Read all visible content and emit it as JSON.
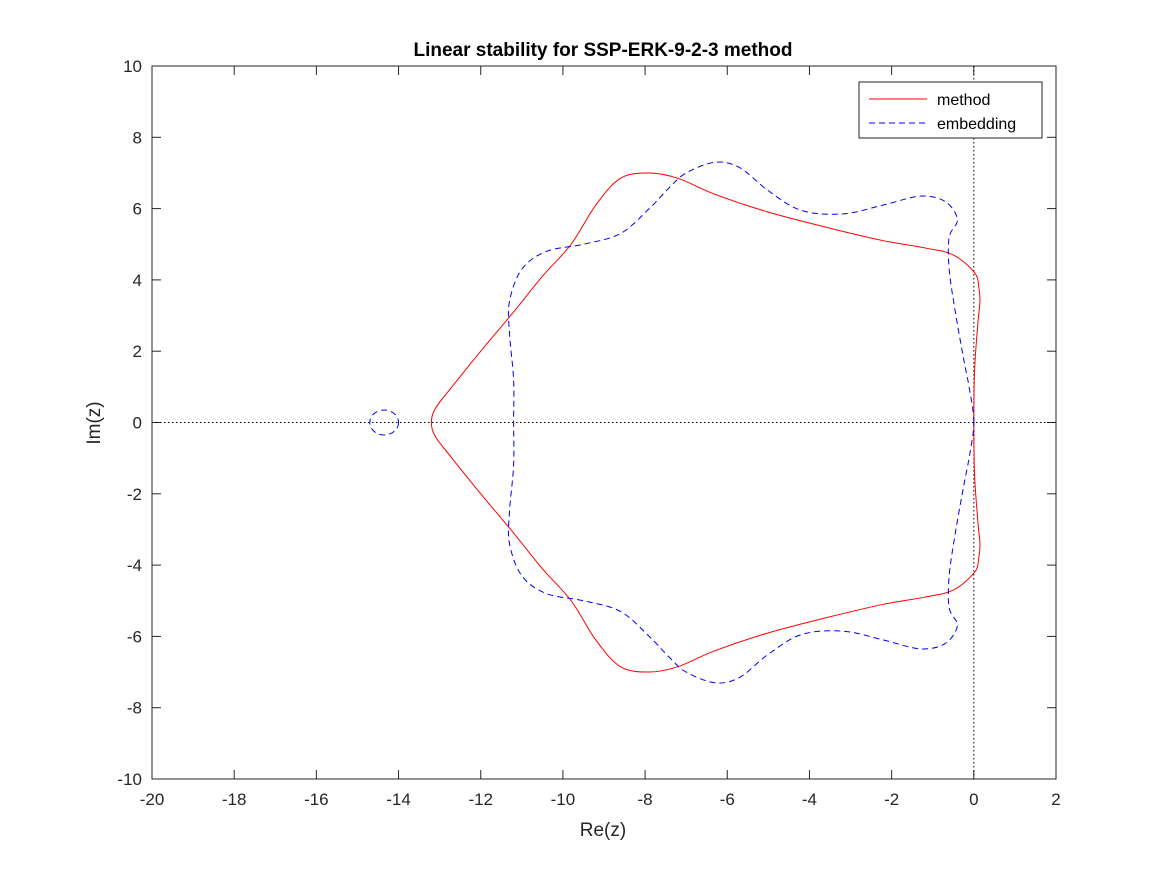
{
  "chart_data": {
    "type": "line",
    "title": "Linear stability for SSP-ERK-9-2-3 method",
    "xlabel": "Re(z)",
    "ylabel": "Im(z)",
    "xlim": [
      -20,
      2
    ],
    "ylim": [
      -10,
      10
    ],
    "xticks": [
      -20,
      -18,
      -16,
      -14,
      -12,
      -10,
      -8,
      -6,
      -4,
      -2,
      0,
      2
    ],
    "yticks": [
      -10,
      -8,
      -6,
      -4,
      -2,
      0,
      2,
      4,
      6,
      8,
      10
    ],
    "grid": false,
    "legend_position": "top-right",
    "reference_lines": [
      {
        "orientation": "horizontal",
        "value": 0,
        "style": "dotted",
        "color": "#000000"
      },
      {
        "orientation": "vertical",
        "value": 0,
        "style": "dotted",
        "color": "#000000"
      }
    ],
    "series": [
      {
        "name": "method",
        "color": "#ff0000",
        "style": "solid",
        "closed": true,
        "points": [
          [
            0,
            0
          ],
          [
            0.02,
            1.5
          ],
          [
            0.1,
            2.8
          ],
          [
            0.15,
            3.4
          ],
          [
            0.12,
            3.8
          ],
          [
            0.02,
            4.2
          ],
          [
            -0.5,
            4.7
          ],
          [
            -1.2,
            4.9
          ],
          [
            -2.2,
            5.1
          ],
          [
            -3.5,
            5.45
          ],
          [
            -5.0,
            5.9
          ],
          [
            -6.3,
            6.4
          ],
          [
            -7.2,
            6.85
          ],
          [
            -7.9,
            7.0
          ],
          [
            -8.6,
            6.85
          ],
          [
            -9.2,
            6.1
          ],
          [
            -9.8,
            5.0
          ],
          [
            -10.5,
            4.1
          ],
          [
            -11.2,
            3.1
          ],
          [
            -12.0,
            2.0
          ],
          [
            -12.7,
            1.0
          ],
          [
            -13.1,
            0.4
          ],
          [
            -13.2,
            0.0
          ],
          [
            -13.1,
            -0.4
          ],
          [
            -12.7,
            -1.0
          ],
          [
            -12.0,
            -2.0
          ],
          [
            -11.2,
            -3.1
          ],
          [
            -10.5,
            -4.1
          ],
          [
            -9.8,
            -5.0
          ],
          [
            -9.2,
            -6.1
          ],
          [
            -8.6,
            -6.85
          ],
          [
            -7.9,
            -7.0
          ],
          [
            -7.2,
            -6.85
          ],
          [
            -6.3,
            -6.4
          ],
          [
            -5.0,
            -5.9
          ],
          [
            -3.5,
            -5.45
          ],
          [
            -2.2,
            -5.1
          ],
          [
            -1.2,
            -4.9
          ],
          [
            -0.5,
            -4.7
          ],
          [
            0.02,
            -4.2
          ],
          [
            0.12,
            -3.8
          ],
          [
            0.15,
            -3.4
          ],
          [
            0.1,
            -2.8
          ],
          [
            0.02,
            -1.5
          ],
          [
            0,
            0
          ]
        ]
      },
      {
        "name": "embedding",
        "color": "#0000ff",
        "style": "dashed",
        "closed": true,
        "points": [
          [
            0,
            0
          ],
          [
            -0.1,
            0.9
          ],
          [
            -0.25,
            1.8
          ],
          [
            -0.45,
            3.1
          ],
          [
            -0.6,
            4.3
          ],
          [
            -0.6,
            5.2
          ],
          [
            -0.4,
            5.7
          ],
          [
            -0.7,
            6.2
          ],
          [
            -1.3,
            6.35
          ],
          [
            -2.2,
            6.1
          ],
          [
            -3.2,
            5.85
          ],
          [
            -4.2,
            5.95
          ],
          [
            -5.0,
            6.5
          ],
          [
            -5.7,
            7.15
          ],
          [
            -6.3,
            7.3
          ],
          [
            -7.0,
            7.0
          ],
          [
            -7.4,
            6.6
          ],
          [
            -7.9,
            6.0
          ],
          [
            -8.6,
            5.3
          ],
          [
            -9.5,
            5.0
          ],
          [
            -10.4,
            4.8
          ],
          [
            -11.0,
            4.3
          ],
          [
            -11.3,
            3.4
          ],
          [
            -11.3,
            2.5
          ],
          [
            -11.2,
            1.2
          ],
          [
            -11.2,
            0.0
          ],
          [
            -11.2,
            -1.2
          ],
          [
            -11.3,
            -2.5
          ],
          [
            -11.3,
            -3.4
          ],
          [
            -11.0,
            -4.3
          ],
          [
            -10.4,
            -4.8
          ],
          [
            -9.5,
            -5.0
          ],
          [
            -8.6,
            -5.3
          ],
          [
            -7.9,
            -6.0
          ],
          [
            -7.4,
            -6.6
          ],
          [
            -7.0,
            -7.0
          ],
          [
            -6.3,
            -7.3
          ],
          [
            -5.7,
            -7.15
          ],
          [
            -5.0,
            -6.5
          ],
          [
            -4.2,
            -5.95
          ],
          [
            -3.2,
            -5.85
          ],
          [
            -2.2,
            -6.1
          ],
          [
            -1.3,
            -6.35
          ],
          [
            -0.7,
            -6.2
          ],
          [
            -0.4,
            -5.7
          ],
          [
            -0.6,
            -5.2
          ],
          [
            -0.6,
            -4.3
          ],
          [
            -0.45,
            -3.1
          ],
          [
            -0.25,
            -1.8
          ],
          [
            -0.1,
            -0.9
          ],
          [
            0,
            0
          ]
        ],
        "extra_loops": [
          {
            "center": [
              -14.35,
              0.0
            ],
            "rx": 0.35,
            "ry": 0.35
          }
        ]
      }
    ]
  }
}
